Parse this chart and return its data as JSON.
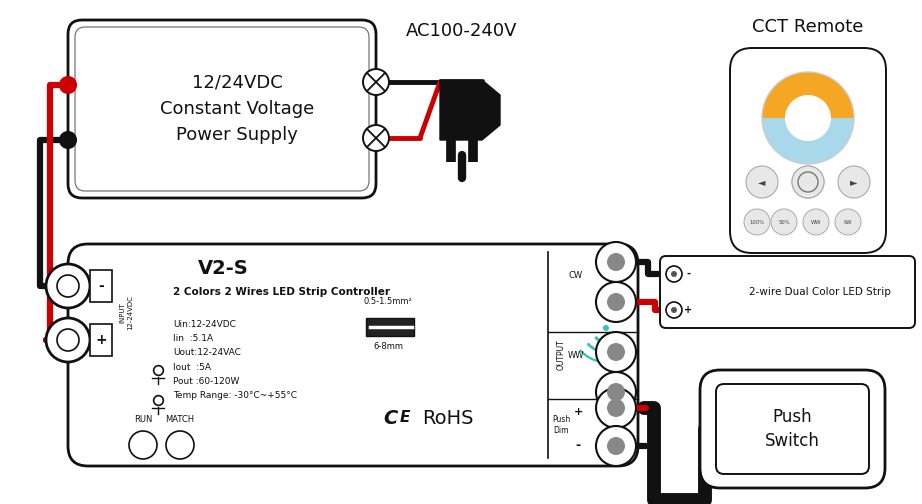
{
  "bg": "#ffffff",
  "black": "#111111",
  "red": "#cc0000",
  "cyan": "#2ec4b6",
  "orange": "#f5a623",
  "sky": "#a8d8ea",
  "gray": "#999999",
  "lgray": "#dddddd",
  "ps_text": "12/24VDC\nConstant Voltage\nPower Supply",
  "ac_text": "AC100-240V",
  "cct_text": "CCT Remote",
  "ctrl_title": "V2-S",
  "ctrl_sub": "2 Colors 2 Wires LED Strip Controller",
  "ctrl_specs": "Uin:12-24VDC\nIin  :5.1A\nUout:12-24VAC\nIout  :5A\nPout :60-120W\nTemp Range: -30°C~+55°C",
  "wire_size": "0.5-1.5mm²",
  "wire_size2": "6-8mm",
  "rohs_text": "RoHS",
  "run_text": "RUN",
  "match_text": "MATCH",
  "led_label": "2-wire Dual Color LED Strip",
  "push_label": "Push\nSwitch",
  "output_label": "OUTPUT",
  "cw_label": "CW",
  "ww_label": "WW",
  "push_dim": "Push\nDim",
  "input_label": "INPUT\n12-24VDC"
}
